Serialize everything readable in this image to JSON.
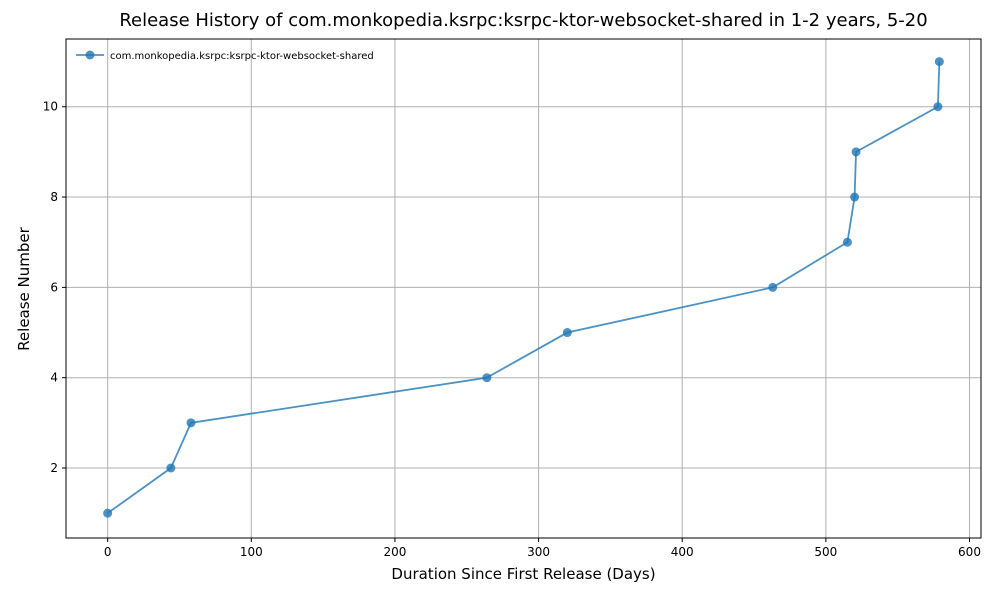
{
  "chart_data": {
    "type": "line",
    "title": "Release History of com.monkopedia.ksrpc:ksrpc-ktor-websocket-shared in 1-2 years, 5-20",
    "xlabel": "Duration Since First Release (Days)",
    "ylabel": "Release Number",
    "xlim": [
      -29,
      608
    ],
    "ylim": [
      0.45,
      11.5
    ],
    "xticks": [
      0,
      100,
      200,
      300,
      400,
      500,
      600
    ],
    "yticks": [
      2,
      4,
      6,
      8,
      10
    ],
    "grid": true,
    "legend_position": "top-left",
    "series": [
      {
        "name": "com.monkopedia.ksrpc:ksrpc-ktor-websocket-shared",
        "color": "#1f77b4",
        "x": [
          0,
          44,
          58,
          264,
          320,
          463,
          515,
          520,
          521,
          578,
          579
        ],
        "y": [
          1,
          2,
          3,
          4,
          5,
          6,
          7,
          8,
          9,
          10,
          11
        ]
      }
    ]
  }
}
